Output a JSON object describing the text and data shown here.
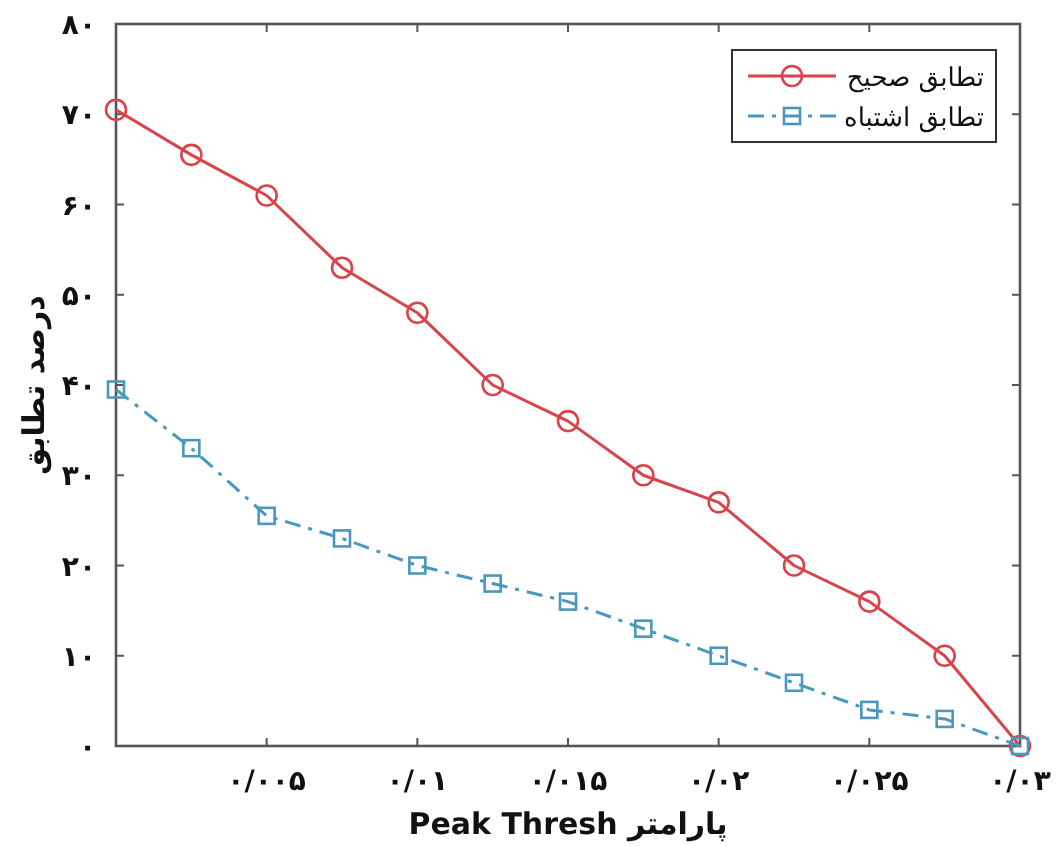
{
  "chart_data": {
    "type": "line",
    "xlabel": "پارامتر Peak Thresh",
    "ylabel": "درصد تطابق",
    "categories": [
      null,
      null,
      "۰/۰۰۵",
      null,
      "۰/۰۱",
      null,
      "۰/۰۱۵",
      null,
      "۰/۰۲",
      null,
      "۰/۰۲۵",
      null,
      "۰/۰۳"
    ],
    "series": [
      {
        "name": "تطابق صحیح",
        "color": "#d9434b",
        "marker": "circle",
        "line_style": "solid",
        "values": [
          70.5,
          65.5,
          61,
          53,
          48,
          40,
          36,
          30,
          27,
          20,
          16,
          10,
          0
        ]
      },
      {
        "name": "تطابق اشتباه",
        "color": "#4a98bd",
        "marker": "square",
        "line_style": "dashdot",
        "values": [
          39.5,
          33,
          25.5,
          23,
          20,
          18,
          16,
          13,
          10,
          7,
          4,
          3,
          0
        ]
      }
    ],
    "ylim": [
      0,
      80
    ],
    "yticks": [
      {
        "value": 0,
        "label": "۰"
      },
      {
        "value": 10,
        "label": "۱۰"
      },
      {
        "value": 20,
        "label": "۲۰"
      },
      {
        "value": 30,
        "label": "۳۰"
      },
      {
        "value": 40,
        "label": "۴۰"
      },
      {
        "value": 50,
        "label": "۵۰"
      },
      {
        "value": 60,
        "label": "۶۰"
      },
      {
        "value": 70,
        "label": "۷۰"
      },
      {
        "value": 80,
        "label": "۸۰"
      }
    ],
    "grid": false,
    "legend": "top right"
  }
}
